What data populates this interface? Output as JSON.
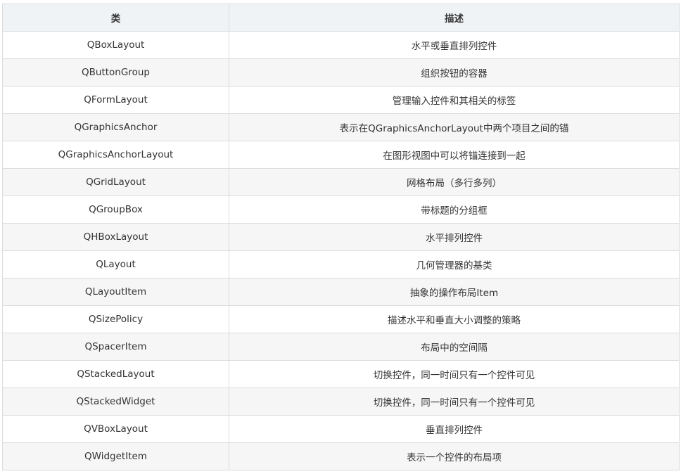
{
  "headers": [
    "类",
    "描述"
  ],
  "rows": [
    [
      "QBoxLayout",
      "水平或垂直排列控件"
    ],
    [
      "QButtonGroup",
      "组织按钮的容器"
    ],
    [
      "QFormLayout",
      "管理输入控件和其相关的标签"
    ],
    [
      "QGraphicsAnchor",
      "表示在QGraphicsAnchorLayout中两个项目之间的锚"
    ],
    [
      "QGraphicsAnchorLayout",
      "在图形视图中可以将锚连接到一起"
    ],
    [
      "QGridLayout",
      "网格布局（多行多列）"
    ],
    [
      "QGroupBox",
      "带标题的分组框"
    ],
    [
      "QHBoxLayout",
      "水平排列控件"
    ],
    [
      "QLayout",
      "几何管理器的基类"
    ],
    [
      "QLayoutItem",
      "抽象的操作布局Item"
    ],
    [
      "QSizePolicy",
      "描述水平和垂直大小调整的策略"
    ],
    [
      "QSpacerItem",
      "布局中的空间隔"
    ],
    [
      "QStackedLayout",
      "切换控件，同一时间只有一个控件可见"
    ],
    [
      "QStackedWidget",
      "切换控件，同一时间只有一个控件可见"
    ],
    [
      "QVBoxLayout",
      "垂直排列控件"
    ],
    [
      "QWidgetItem",
      "表示一个控件的布局项"
    ]
  ]
}
